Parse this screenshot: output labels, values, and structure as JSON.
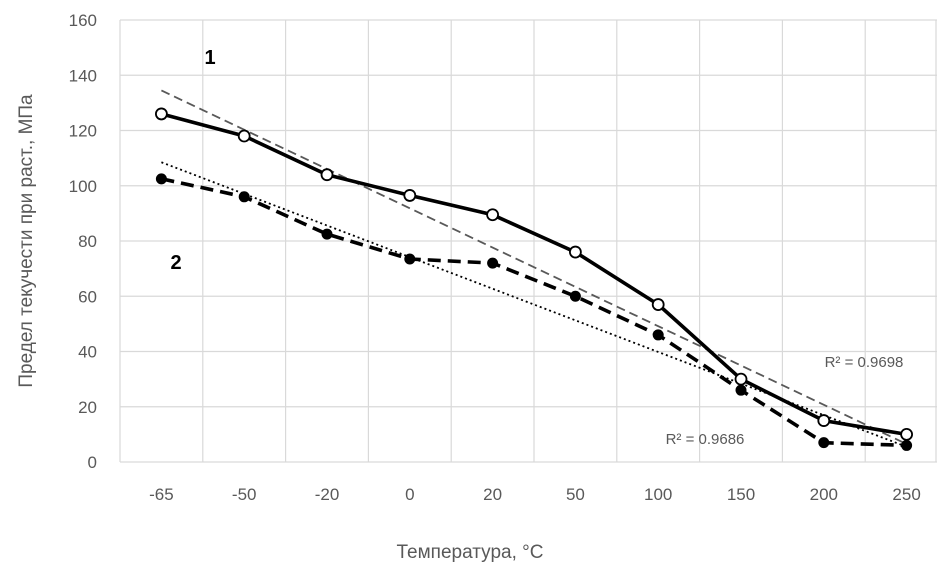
{
  "chart_data": {
    "type": "line",
    "xlabel": "Температура, °C",
    "ylabel": "Предел текучести при раст., МПа",
    "categories": [
      "-65",
      "-50",
      "-20",
      "0",
      "20",
      "50",
      "100",
      "150",
      "200",
      "250"
    ],
    "ylim": [
      0,
      160
    ],
    "yticks": [
      "0",
      "20",
      "40",
      "60",
      "80",
      "100",
      "120",
      "140",
      "160"
    ],
    "grid": true,
    "series": [
      {
        "name": "1",
        "values": [
          126,
          118,
          104,
          96.5,
          89.5,
          76,
          57,
          30,
          15,
          10
        ],
        "marker": "open-circle",
        "line": "solid",
        "color": "#000000"
      },
      {
        "name": "2",
        "values": [
          102.5,
          96,
          82.5,
          73.5,
          72,
          60,
          46,
          26,
          7,
          6
        ],
        "marker": "filled-circle",
        "line": "dashed",
        "color": "#000000"
      }
    ],
    "trendlines": [
      {
        "series": "1",
        "type": "linear",
        "from": 134.5,
        "to": 6.5,
        "r2_label": "R² = 0.9698",
        "style": "dashed",
        "color": "#595959"
      },
      {
        "series": "2",
        "type": "linear",
        "from": 108.5,
        "to": 5.5,
        "r2_label": "R² = 0.9686",
        "style": "dotted",
        "color": "#000000"
      }
    ]
  }
}
